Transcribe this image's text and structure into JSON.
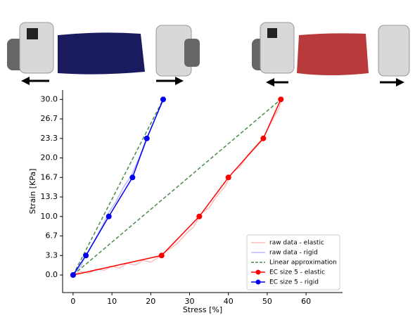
{
  "chart_data": {
    "type": "line",
    "x_label": "Stress [%]",
    "y_label": "Strain [KPa]",
    "xlim": [
      -2.7,
      69.4
    ],
    "ylim": [
      -3.0,
      31.6
    ],
    "xticks": [
      0,
      10,
      20,
      30,
      40,
      50,
      60
    ],
    "yticks": [
      {
        "value": 0,
        "label": "0.0"
      },
      {
        "value": 3.333,
        "label": "3.3"
      },
      {
        "value": 6.667,
        "label": "6.7"
      },
      {
        "value": 10,
        "label": "10.0"
      },
      {
        "value": 13.333,
        "label": "13.3"
      },
      {
        "value": 16.667,
        "label": "16.7"
      },
      {
        "value": 20,
        "label": "20.0"
      },
      {
        "value": 23.333,
        "label": "23.3"
      },
      {
        "value": 26.667,
        "label": "26.7"
      },
      {
        "value": 30,
        "label": "30.0"
      }
    ],
    "legend": "lower right",
    "series": [
      {
        "name": "raw data - elastic",
        "color": "#ffbcbc",
        "linestyle": "solid",
        "marker": false,
        "linewidth": 1.5,
        "x": [
          0,
          2,
          4,
          6,
          8,
          10,
          12,
          14,
          16,
          18,
          20,
          22,
          23,
          25,
          27,
          29,
          31,
          33,
          35,
          37,
          39,
          41,
          43,
          45,
          47,
          49,
          51,
          53,
          54
        ],
        "values": [
          0,
          0.6,
          0.3,
          1.0,
          0.8,
          1.5,
          1.2,
          2.0,
          1.7,
          2.5,
          2.2,
          3.0,
          3.6,
          4.5,
          5.5,
          7.0,
          8.2,
          10.5,
          11.5,
          13.5,
          15.0,
          17.5,
          18.5,
          20.5,
          22.0,
          23.5,
          26.0,
          28.5,
          30.5
        ]
      },
      {
        "name": "raw data - rigid",
        "color": "#bcbcff",
        "linestyle": "solid",
        "marker": false,
        "linewidth": 1.5,
        "x": [
          0,
          1,
          2,
          3,
          4,
          6,
          8,
          9,
          11,
          13,
          15,
          17,
          19,
          21,
          23,
          23.5
        ],
        "values": [
          0,
          0.8,
          1.5,
          3.0,
          4.0,
          6.5,
          9.0,
          10.5,
          12.5,
          15.0,
          17.0,
          20.0,
          23.5,
          26.5,
          29.5,
          30.5
        ]
      },
      {
        "name": "Linear approximation",
        "color": "#4a8a4a",
        "linestyle": "dashed",
        "marker": false,
        "linewidth": 1.5,
        "x": [
          0,
          53.5,
          53.5,
          0,
          23.2
        ],
        "values": [
          0,
          30,
          null,
          0,
          30
        ]
      },
      {
        "name": "EC size 5 - elastic",
        "color": "#ff0000",
        "linestyle": "solid",
        "marker": true,
        "linewidth": 1.5,
        "x": [
          0,
          22.8,
          32.5,
          40,
          49,
          53.5
        ],
        "values": [
          0,
          3.333,
          10,
          16.667,
          23.333,
          30
        ]
      },
      {
        "name": "EC size 5 - rigid",
        "color": "#0000ee",
        "linestyle": "solid",
        "marker": true,
        "linewidth": 1.5,
        "x": [
          0,
          3.3,
          9.2,
          15.3,
          19,
          23.2
        ],
        "values": [
          0,
          3.333,
          10,
          16.667,
          23.333,
          30
        ]
      }
    ]
  }
}
